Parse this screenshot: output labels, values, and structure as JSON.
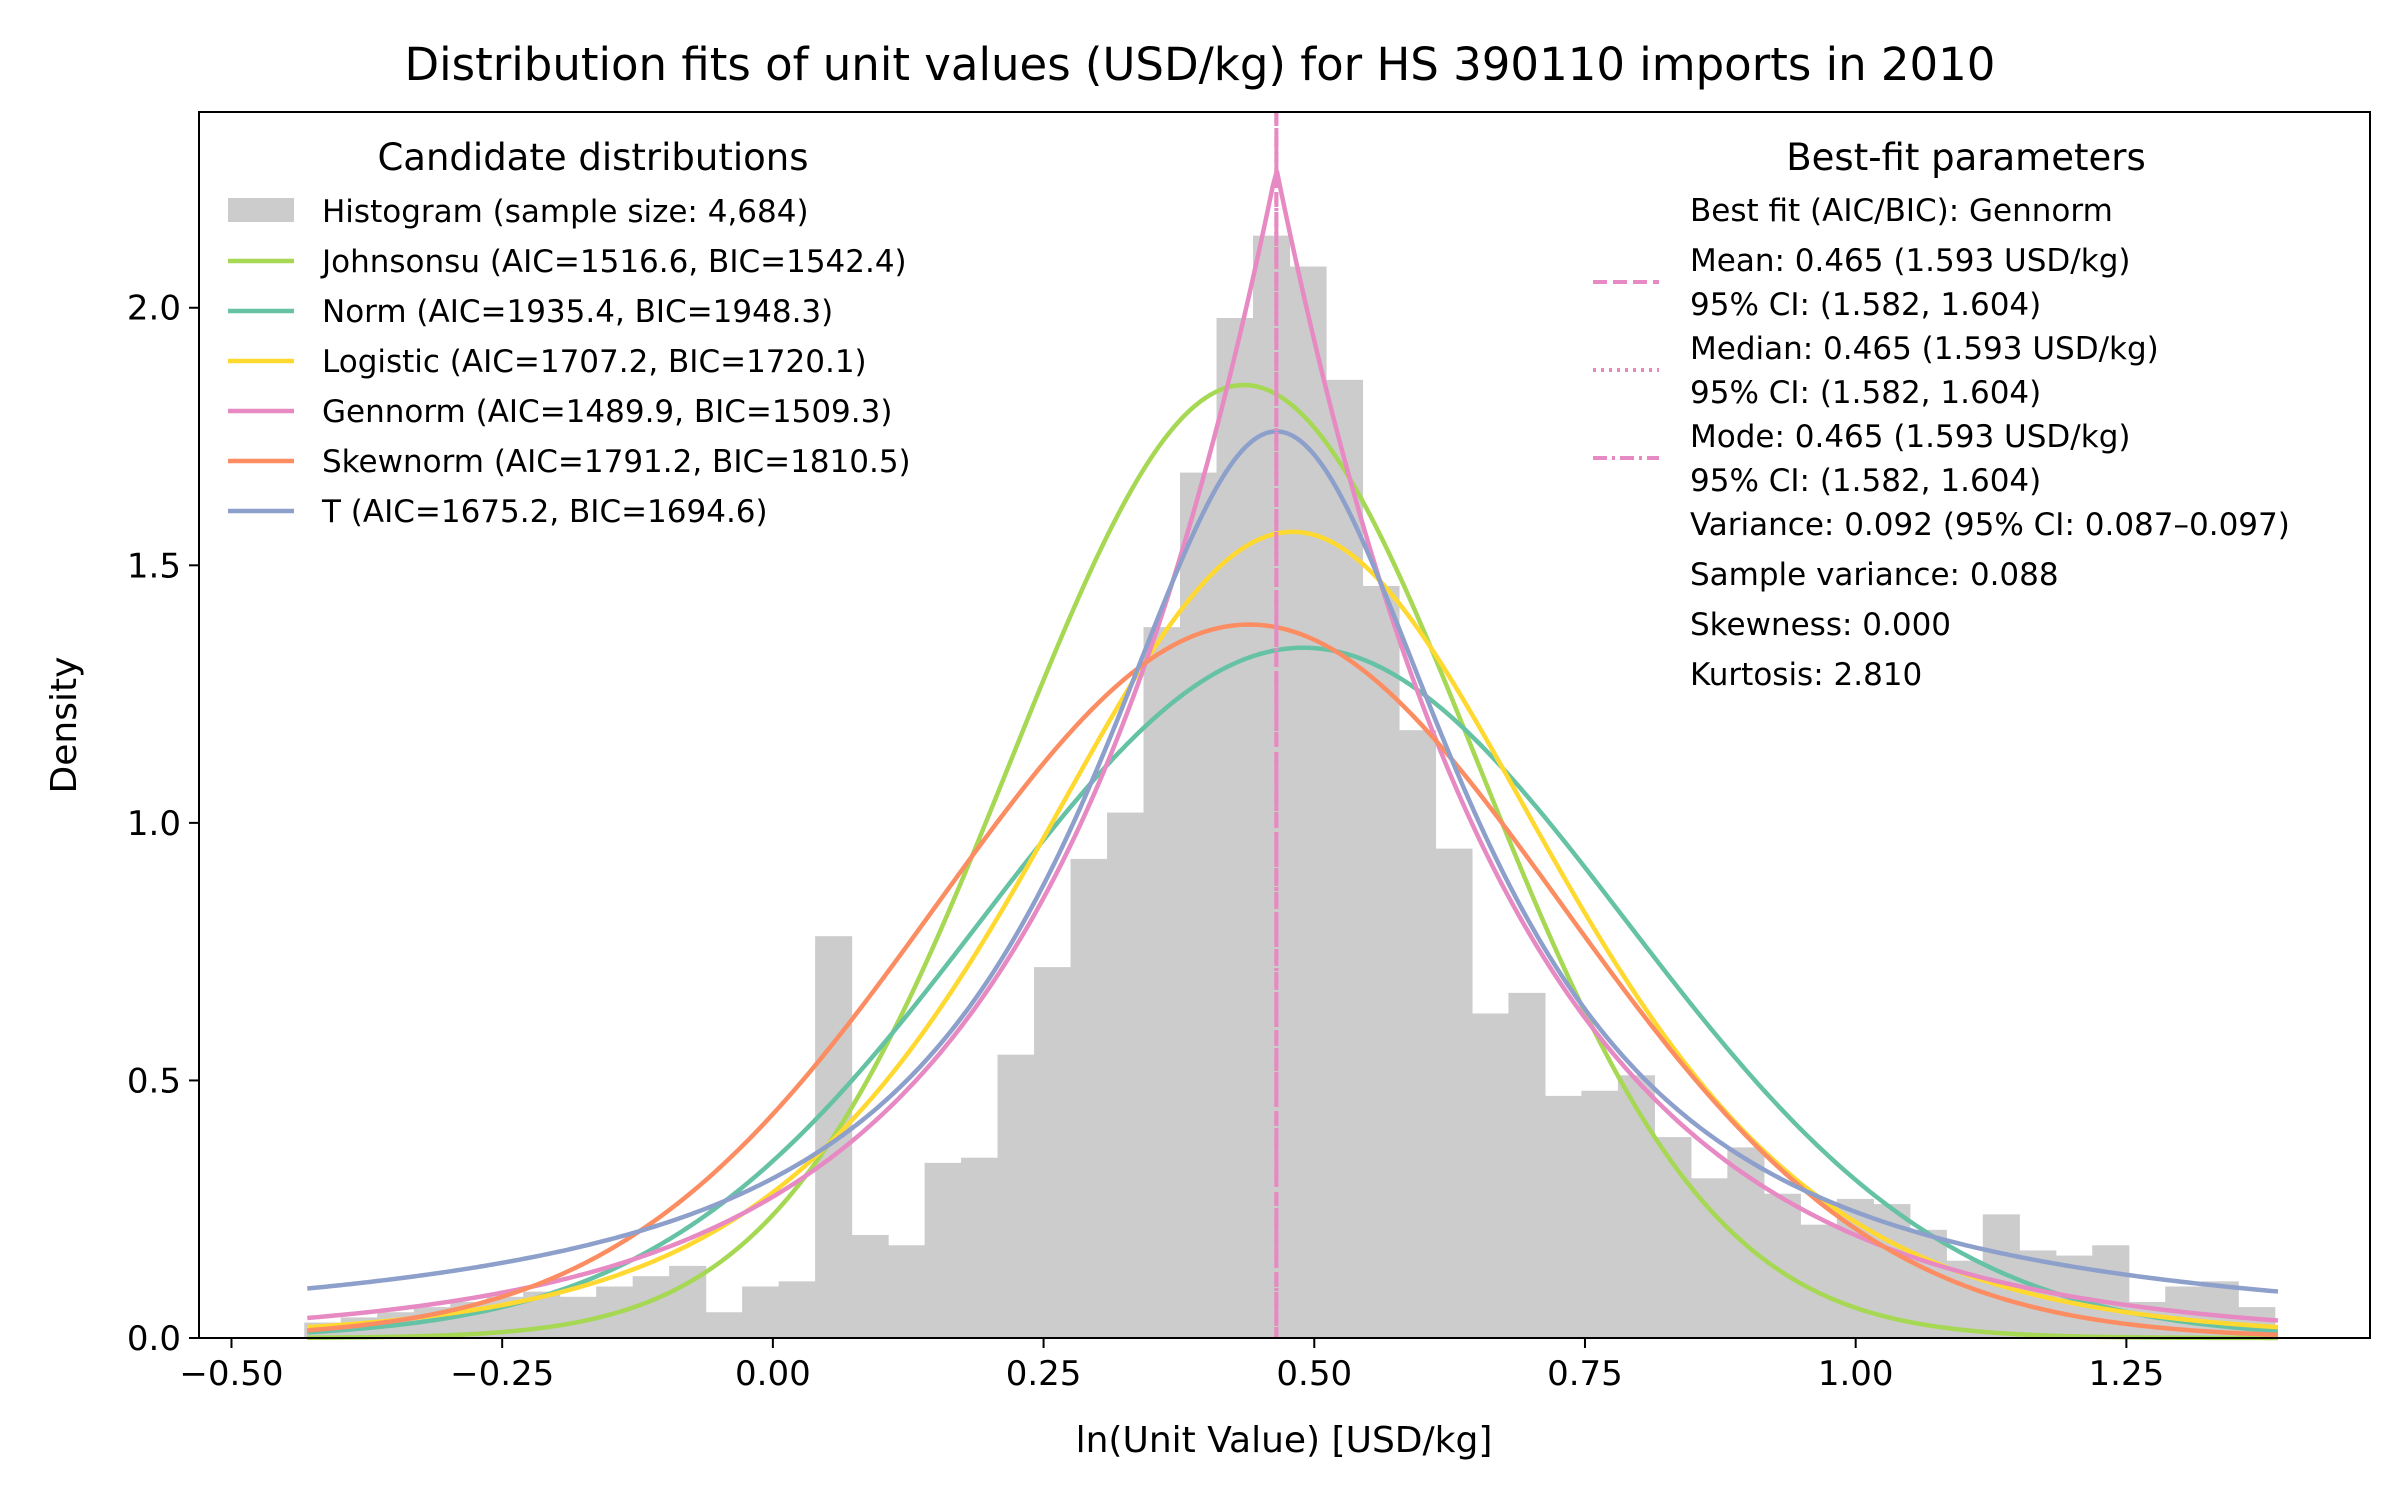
{
  "chart_data": {
    "type": "line",
    "title": "Distribution fits of unit values (USD/kg) for HS 390110 imports in 2010",
    "xlabel": "ln(Unit Value) [USD/kg]",
    "ylabel": "Density",
    "xlim": [
      -0.53,
      1.475
    ],
    "ylim": [
      0,
      2.38
    ],
    "xticks": [
      -0.5,
      -0.25,
      0.0,
      0.25,
      0.5,
      0.75,
      1.0,
      1.25
    ],
    "xtick_labels": [
      "−0.50",
      "−0.25",
      "0.00",
      "0.25",
      "0.50",
      "0.75",
      "1.00",
      "1.25"
    ],
    "yticks": [
      0.0,
      0.5,
      1.0,
      1.5,
      2.0
    ],
    "ytick_labels": [
      "0.0",
      "0.5",
      "1.0",
      "1.5",
      "2.0"
    ],
    "grid": false,
    "histogram": {
      "name": "Histogram (sample size: 4,684)",
      "color": "#cccccc",
      "bin_start": -0.4328,
      "bin_width": 0.0337,
      "densities": [
        0.03,
        0.04,
        0.05,
        0.06,
        0.07,
        0.08,
        0.09,
        0.08,
        0.1,
        0.12,
        0.14,
        0.05,
        0.1,
        0.11,
        0.78,
        0.2,
        0.18,
        0.34,
        0.35,
        0.55,
        0.72,
        0.93,
        1.02,
        1.38,
        1.68,
        1.98,
        2.14,
        2.08,
        1.86,
        1.46,
        1.18,
        0.95,
        0.63,
        0.67,
        0.47,
        0.48,
        0.51,
        0.39,
        0.31,
        0.37,
        0.28,
        0.22,
        0.27,
        0.26,
        0.21,
        0.15,
        0.24,
        0.17,
        0.16,
        0.18,
        0.07,
        0.1,
        0.11,
        0.06
      ]
    },
    "series": [
      {
        "name": "Johnsonsu (AIC=1516.6, BIC=1542.4)",
        "color": "#a6d854",
        "dist": "gauss",
        "mu": 0.435,
        "sigma": 0.215,
        "amp": 1.85
      },
      {
        "name": "Norm (AIC=1935.4, BIC=1948.3)",
        "color": "#66c2a5",
        "dist": "gauss",
        "mu": 0.49,
        "sigma": 0.297,
        "amp": 1.34
      },
      {
        "name": "Logistic (AIC=1707.2, BIC=1720.1)",
        "color": "#ffd92f",
        "dist": "logistic",
        "mu": 0.48,
        "s": 0.16,
        "amp": 1.565
      },
      {
        "name": "Gennorm (AIC=1489.9, BIC=1509.3)",
        "color": "#e78ac3",
        "dist": "laplace",
        "mu": 0.465,
        "b": 0.22,
        "amp": 2.27
      },
      {
        "name": "Skewnorm (AIC=1791.2, BIC=1810.5)",
        "color": "#fc8d62",
        "dist": "gauss",
        "mu": 0.44,
        "sigma": 0.289,
        "amp": 1.385
      },
      {
        "name": "T (AIC=1675.2, BIC=1694.6)",
        "color": "#8da0cb",
        "dist": "cauchy",
        "mu": 0.465,
        "gamma": 0.215,
        "amp": 1.76
      }
    ],
    "fit_x_range": [
      -0.43,
      1.39
    ],
    "vlines": {
      "x": 0.465,
      "color": "#e78ac3"
    },
    "legend_candidates": {
      "title": "Candidate distributions",
      "placement": "top-left"
    },
    "legend_params": {
      "title": "Best-fit parameters",
      "placement": "top-right",
      "entries": [
        {
          "lines": [
            "Best fit (AIC/BIC): Gennorm"
          ],
          "style": "none"
        },
        {
          "lines": [
            "Mean: 0.465 (1.593 USD/kg)",
            "95% CI: (1.582, 1.604)"
          ],
          "style": "dashed"
        },
        {
          "lines": [
            "Median: 0.465 (1.593 USD/kg)",
            "95% CI: (1.582, 1.604)"
          ],
          "style": "dotted"
        },
        {
          "lines": [
            "Mode: 0.465 (1.593 USD/kg)",
            "95% CI: (1.582, 1.604)"
          ],
          "style": "dashdot"
        },
        {
          "lines": [
            "Variance: 0.092 (95% CI: 0.087–0.097)"
          ],
          "style": "none"
        },
        {
          "lines": [
            "Sample variance: 0.088"
          ],
          "style": "none"
        },
        {
          "lines": [
            "Skewness: 0.000"
          ],
          "style": "none"
        },
        {
          "lines": [
            "Kurtosis: 2.810"
          ],
          "style": "none"
        }
      ]
    }
  }
}
